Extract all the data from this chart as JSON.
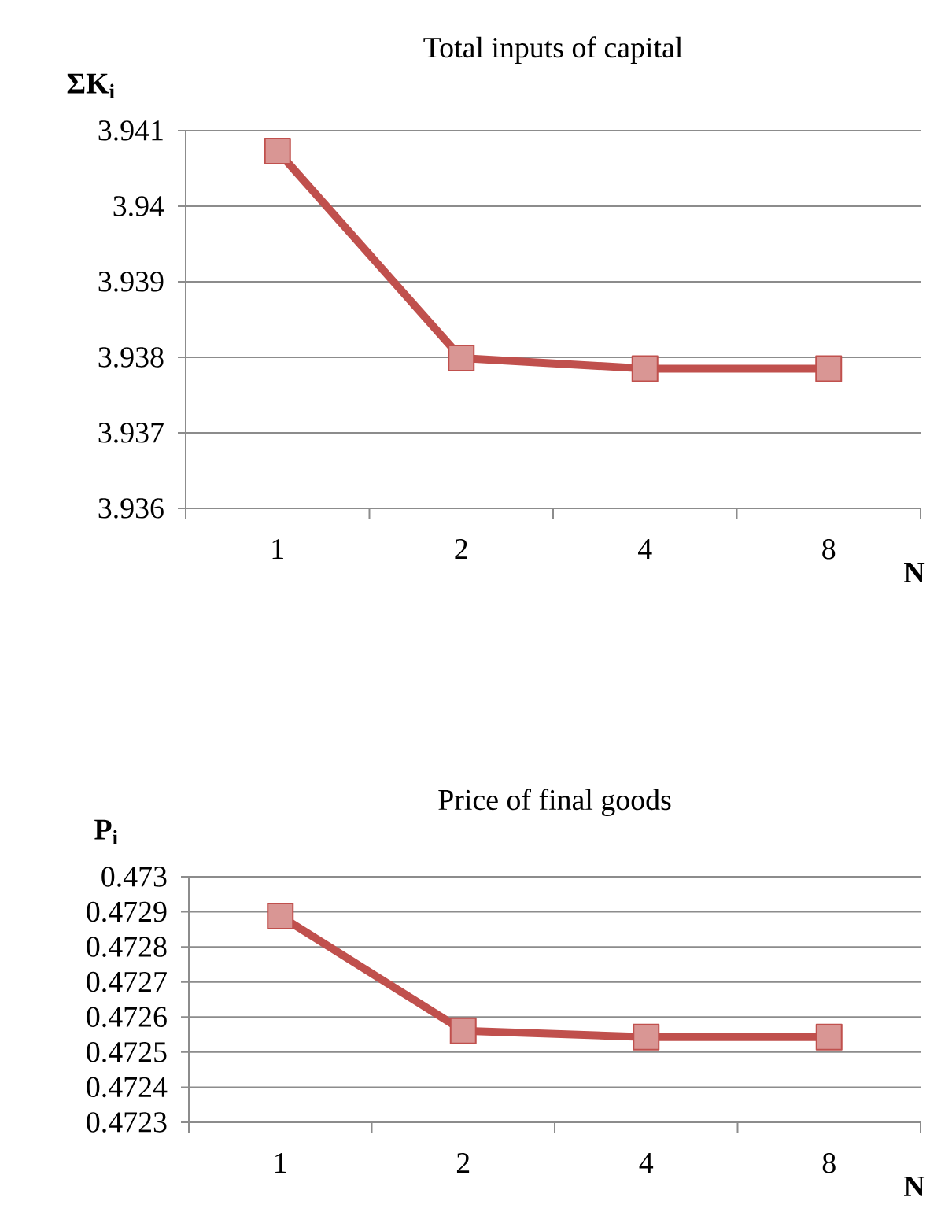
{
  "chart_data": [
    {
      "type": "line",
      "title": "Total inputs of capital",
      "ylabel": "ΣK$_{i}$",
      "xlabel": "N",
      "categories": [
        "1",
        "2",
        "4",
        "8"
      ],
      "series": [
        {
          "color": "#c0504d",
          "values": [
            3.94073,
            3.93799,
            3.93785,
            3.93785
          ]
        }
      ],
      "ylim": [
        3.936,
        3.941
      ],
      "yticks": [
        3.936,
        3.937,
        3.938,
        3.939,
        3.94,
        3.941
      ],
      "grid": "y",
      "marker": "square",
      "line_style": "solid"
    },
    {
      "type": "line",
      "title": "Price of  final goods",
      "ylabel": "P$_{i}$",
      "xlabel": "N",
      "categories": [
        "1",
        "2",
        "4",
        "8"
      ],
      "series": [
        {
          "color": "#c0504d",
          "values": [
            0.472888,
            0.472561,
            0.472543,
            0.472543
          ]
        }
      ],
      "ylim": [
        0.4723,
        0.473
      ],
      "yticks": [
        0.4723,
        0.4724,
        0.4725,
        0.4726,
        0.4727,
        0.4728,
        0.4729,
        0.473
      ],
      "grid": "y",
      "marker": "square",
      "line_style": "solid"
    }
  ]
}
